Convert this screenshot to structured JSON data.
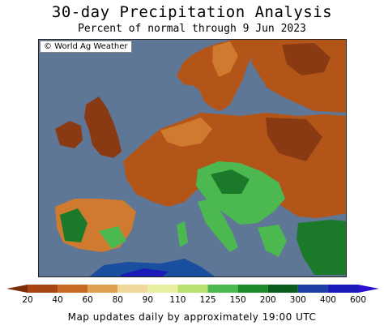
{
  "title": "30-day Precipitation Analysis",
  "subtitle": "Percent of normal through 9 Jun 2023",
  "credit": "© World Ag Weather",
  "colorbar": {
    "labels": [
      "20",
      "40",
      "60",
      "80",
      "90",
      "110",
      "125",
      "150",
      "200",
      "300",
      "400",
      "600"
    ],
    "colors": [
      "#7a2e0a",
      "#a84512",
      "#c96a24",
      "#e0a050",
      "#f2d79a",
      "#e8f0a0",
      "#b8e070",
      "#4cb850",
      "#1f8a2a",
      "#0a5d1c",
      "#1c3fa8",
      "#1a1ab8",
      "#2a10d0"
    ]
  },
  "footer": "Map updates daily by approximately 19:00 UTC",
  "map_colors": {
    "water": "#5f7797",
    "very_dry": "#8a3a12",
    "dry": "#b35519",
    "moderate_dry": "#cf7a2e",
    "normal": "#e8c27a",
    "wet": "#4cb850",
    "very_wet": "#1a7a2a",
    "extreme_wet": "#1c3fa8"
  }
}
